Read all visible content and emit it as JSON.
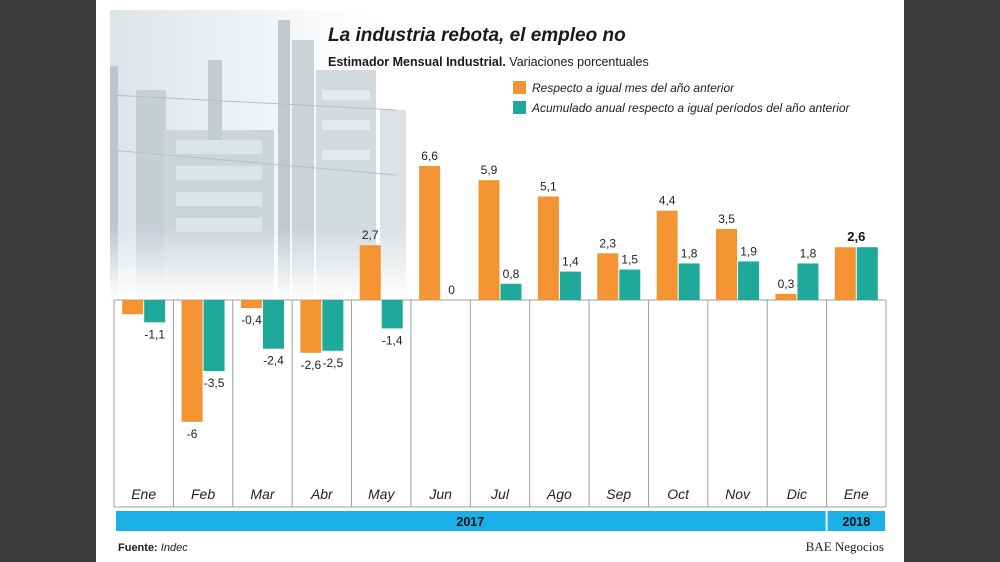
{
  "colors": {
    "orange": "#F39331",
    "teal": "#1FA99A",
    "year_band": "#1AAFE6",
    "grid": "#9e9e9e"
  },
  "footer": {
    "source_label": "Fuente:",
    "source_value": "Indec",
    "brand": "BAE Negocios"
  },
  "chart_data": {
    "type": "bar",
    "title": "La industria rebota, el empleo no",
    "subtitle_bold": "Estimador Mensual Industrial.",
    "subtitle": " Variaciones porcentuales",
    "categories": [
      "Ene",
      "Feb",
      "Mar",
      "Abr",
      "May",
      "Jun",
      "Jul",
      "Ago",
      "Sep",
      "Oct",
      "Nov",
      "Dic",
      "Ene"
    ],
    "year_groups": [
      {
        "label": "2017",
        "count": 12
      },
      {
        "label": "2018",
        "count": 1
      }
    ],
    "series": [
      {
        "name": "Respecto a igual mes del año anterior",
        "color_key": "orange",
        "values": [
          null,
          -6,
          -0.4,
          -2.6,
          2.7,
          6.6,
          5.9,
          5.1,
          2.3,
          4.4,
          3.5,
          0.3,
          2.6
        ],
        "labels": [
          "",
          "-6",
          "-0,4",
          "-2,6",
          "2,7",
          "6,6",
          "5,9",
          "5,1",
          "2,3",
          "4,4",
          "3,5",
          "0,3",
          "2,6"
        ],
        "bar_values": [
          -0.7,
          -6,
          -0.4,
          -2.6,
          2.7,
          6.6,
          5.9,
          5.1,
          2.3,
          4.4,
          3.5,
          0.3,
          2.6
        ]
      },
      {
        "name": "Acumulado anual respecto a igual períodos del año anterior",
        "color_key": "teal",
        "values": [
          -1.1,
          -3.5,
          -2.4,
          -2.5,
          -1.4,
          0,
          0.8,
          1.4,
          1.5,
          1.8,
          1.9,
          1.8,
          2.6
        ],
        "labels": [
          "-1,1",
          "-3,5",
          "-2,4",
          "-2,5",
          "-1,4",
          "0",
          "0,8",
          "1,4",
          "1,5",
          "1,8",
          "1,9",
          "1,8",
          "2,6"
        ]
      }
    ],
    "combined_label_index": 12,
    "ylim": [
      -6.2,
      6.8
    ],
    "legend": "top-right"
  }
}
